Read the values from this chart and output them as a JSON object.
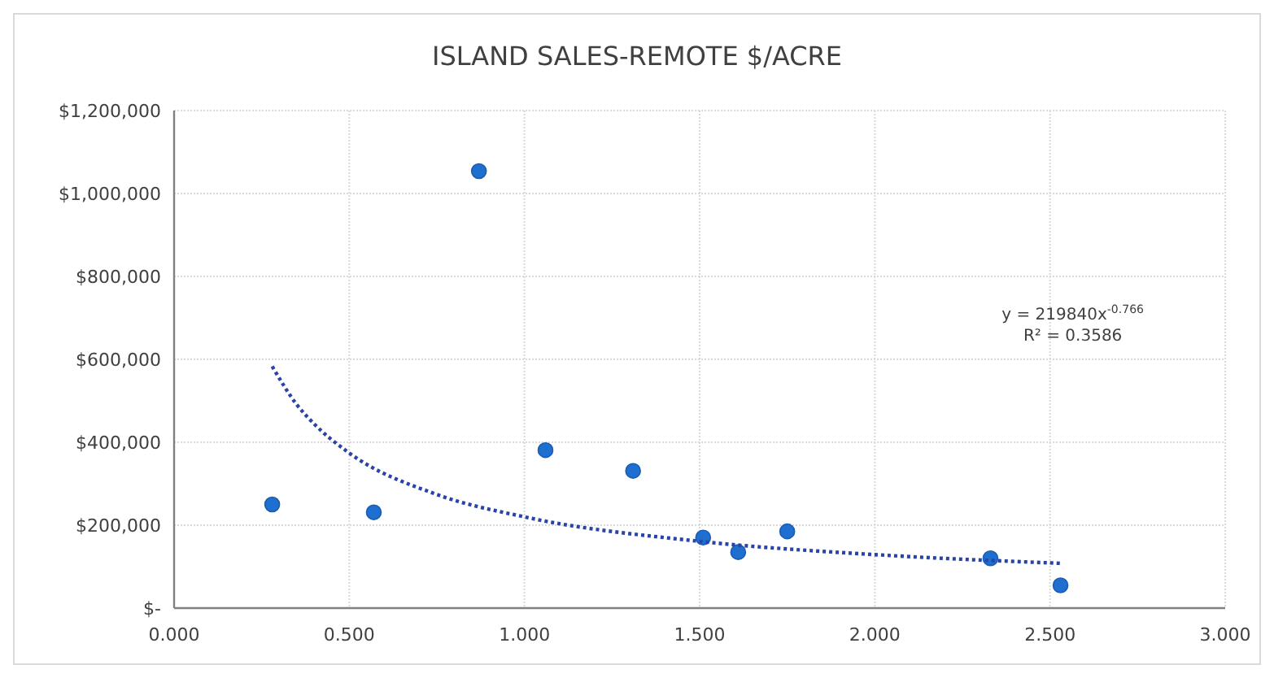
{
  "chart_data": {
    "type": "scatter",
    "title": "ISLAND SALES-REMOTE $/ACRE",
    "x": [
      0.28,
      0.57,
      0.87,
      1.06,
      1.31,
      1.51,
      1.61,
      1.75,
      2.33,
      2.53
    ],
    "xlim": [
      0,
      3
    ],
    "ylim": [
      0,
      1200000
    ],
    "xticks": [
      {
        "value": 0,
        "label": "0.000"
      },
      {
        "value": 0.5,
        "label": "0.500"
      },
      {
        "value": 1,
        "label": "1.000"
      },
      {
        "value": 1.5,
        "label": "1.500"
      },
      {
        "value": 2,
        "label": "2.000"
      },
      {
        "value": 2.5,
        "label": "2.500"
      },
      {
        "value": 3,
        "label": "3.000"
      }
    ],
    "yticks": [
      {
        "value": 0,
        "label": "$-"
      },
      {
        "value": 200000,
        "label": "$200,000"
      },
      {
        "value": 400000,
        "label": "$400,000"
      },
      {
        "value": 600000,
        "label": "$600,000"
      },
      {
        "value": 800000,
        "label": "$800,000"
      },
      {
        "value": 1000000,
        "label": "$1,000,000"
      },
      {
        "value": 1200000,
        "label": "$1,200,000"
      }
    ],
    "grid": true,
    "marker": "circle",
    "series": [
      {
        "color": "#1f6fd1",
        "values": [
          250000,
          231000,
          1054000,
          381000,
          331000,
          170000,
          135000,
          185000,
          120000,
          55000
        ]
      },
      {
        "type": "line",
        "color": "#2a43a8",
        "line_style": "dotted",
        "marker": "none",
        "x": [
          0.28,
          0.35,
          0.4,
          0.5,
          0.75,
          1,
          1.5,
          2,
          2.53
        ],
        "values": [
          583000,
          491000,
          444000,
          374000,
          274000,
          220000,
          161000,
          129000,
          108000
        ]
      }
    ],
    "annotations": [
      "y = 219840x$^{-0.766}$",
      "R² = 0.3586"
    ]
  }
}
